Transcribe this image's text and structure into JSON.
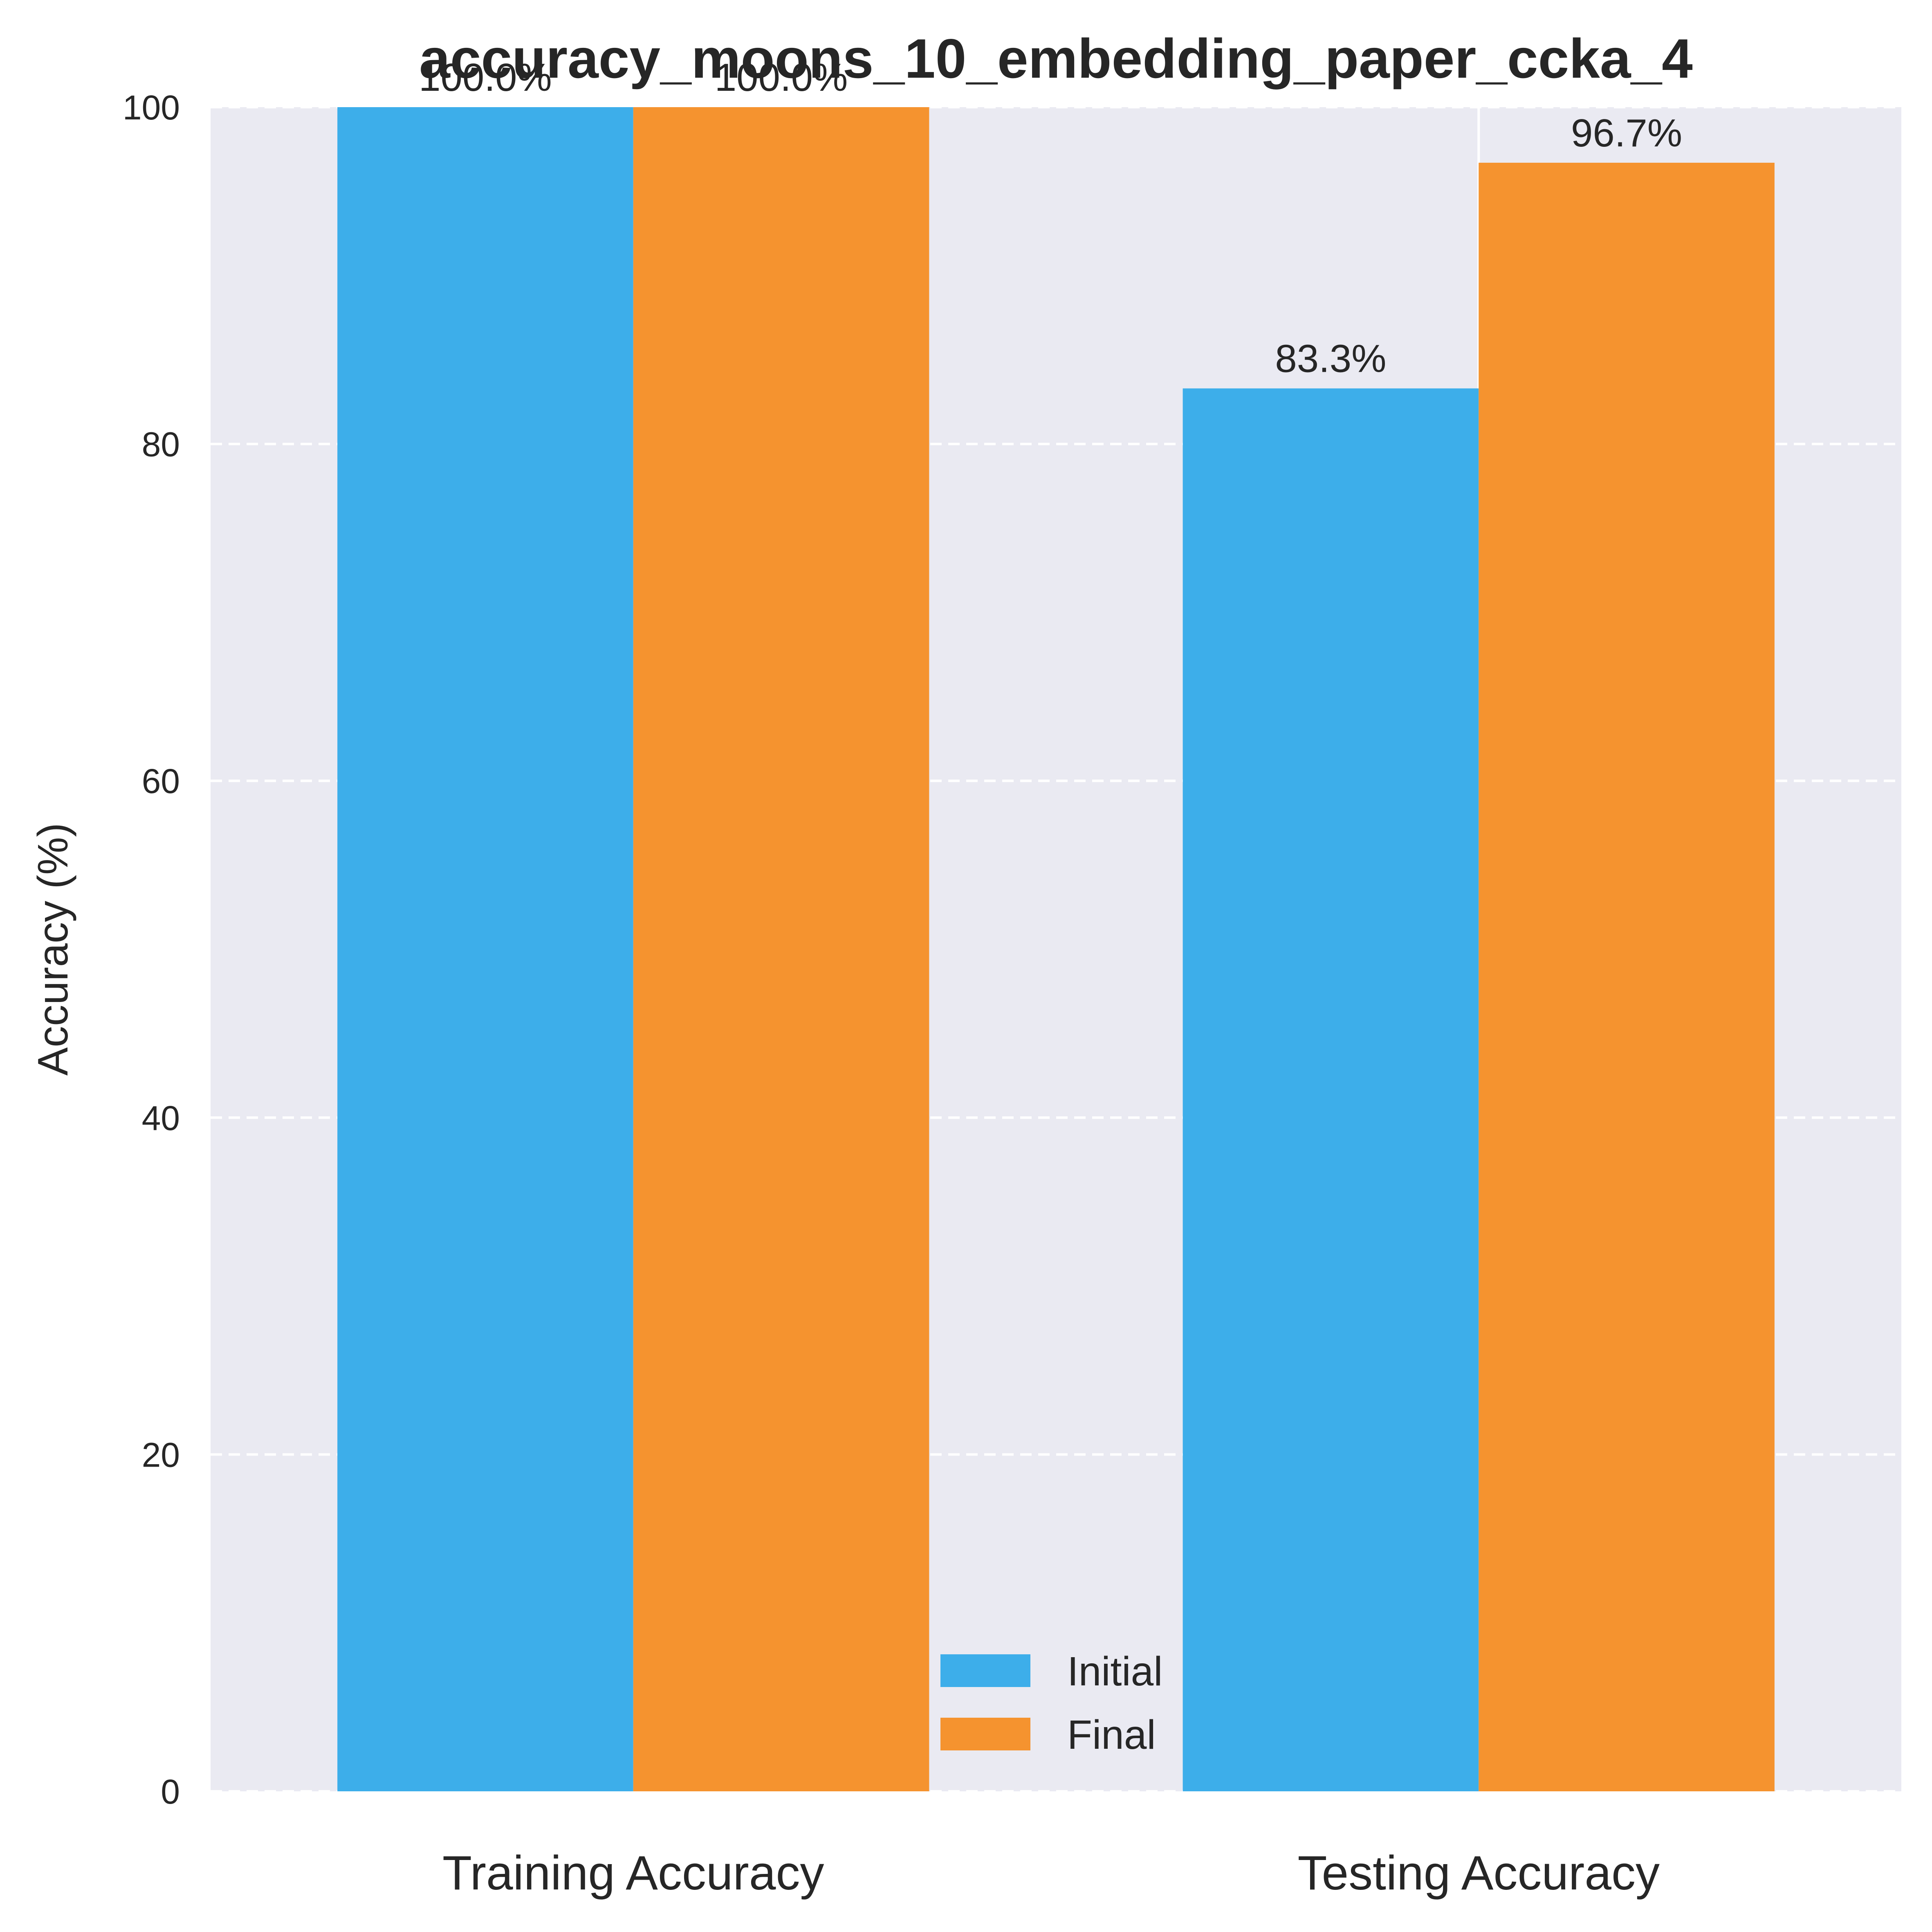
{
  "chart_data": {
    "type": "bar",
    "title": "accuracy_moons_10_embedding_paper_ccka_4",
    "xlabel": "",
    "ylabel": "Accuracy (%)",
    "ylim": [
      0,
      100
    ],
    "yticks": [
      "0",
      "20",
      "40",
      "60",
      "80",
      "100"
    ],
    "categories": [
      "Training Accuracy",
      "Testing Accuracy"
    ],
    "series": [
      {
        "name": "Initial",
        "values": [
          100.0,
          83.3
        ],
        "labels": [
          "100.0%",
          "83.3%"
        ],
        "color": "#3daeea"
      },
      {
        "name": "Final",
        "values": [
          100.0,
          96.7
        ],
        "labels": [
          "100.0%",
          "96.7%"
        ],
        "color": "#f5932f"
      }
    ],
    "grid": true,
    "legend_position": "lower center",
    "colors": {
      "plot_background": "#eaeaf2",
      "grid": "#ffffff"
    }
  }
}
